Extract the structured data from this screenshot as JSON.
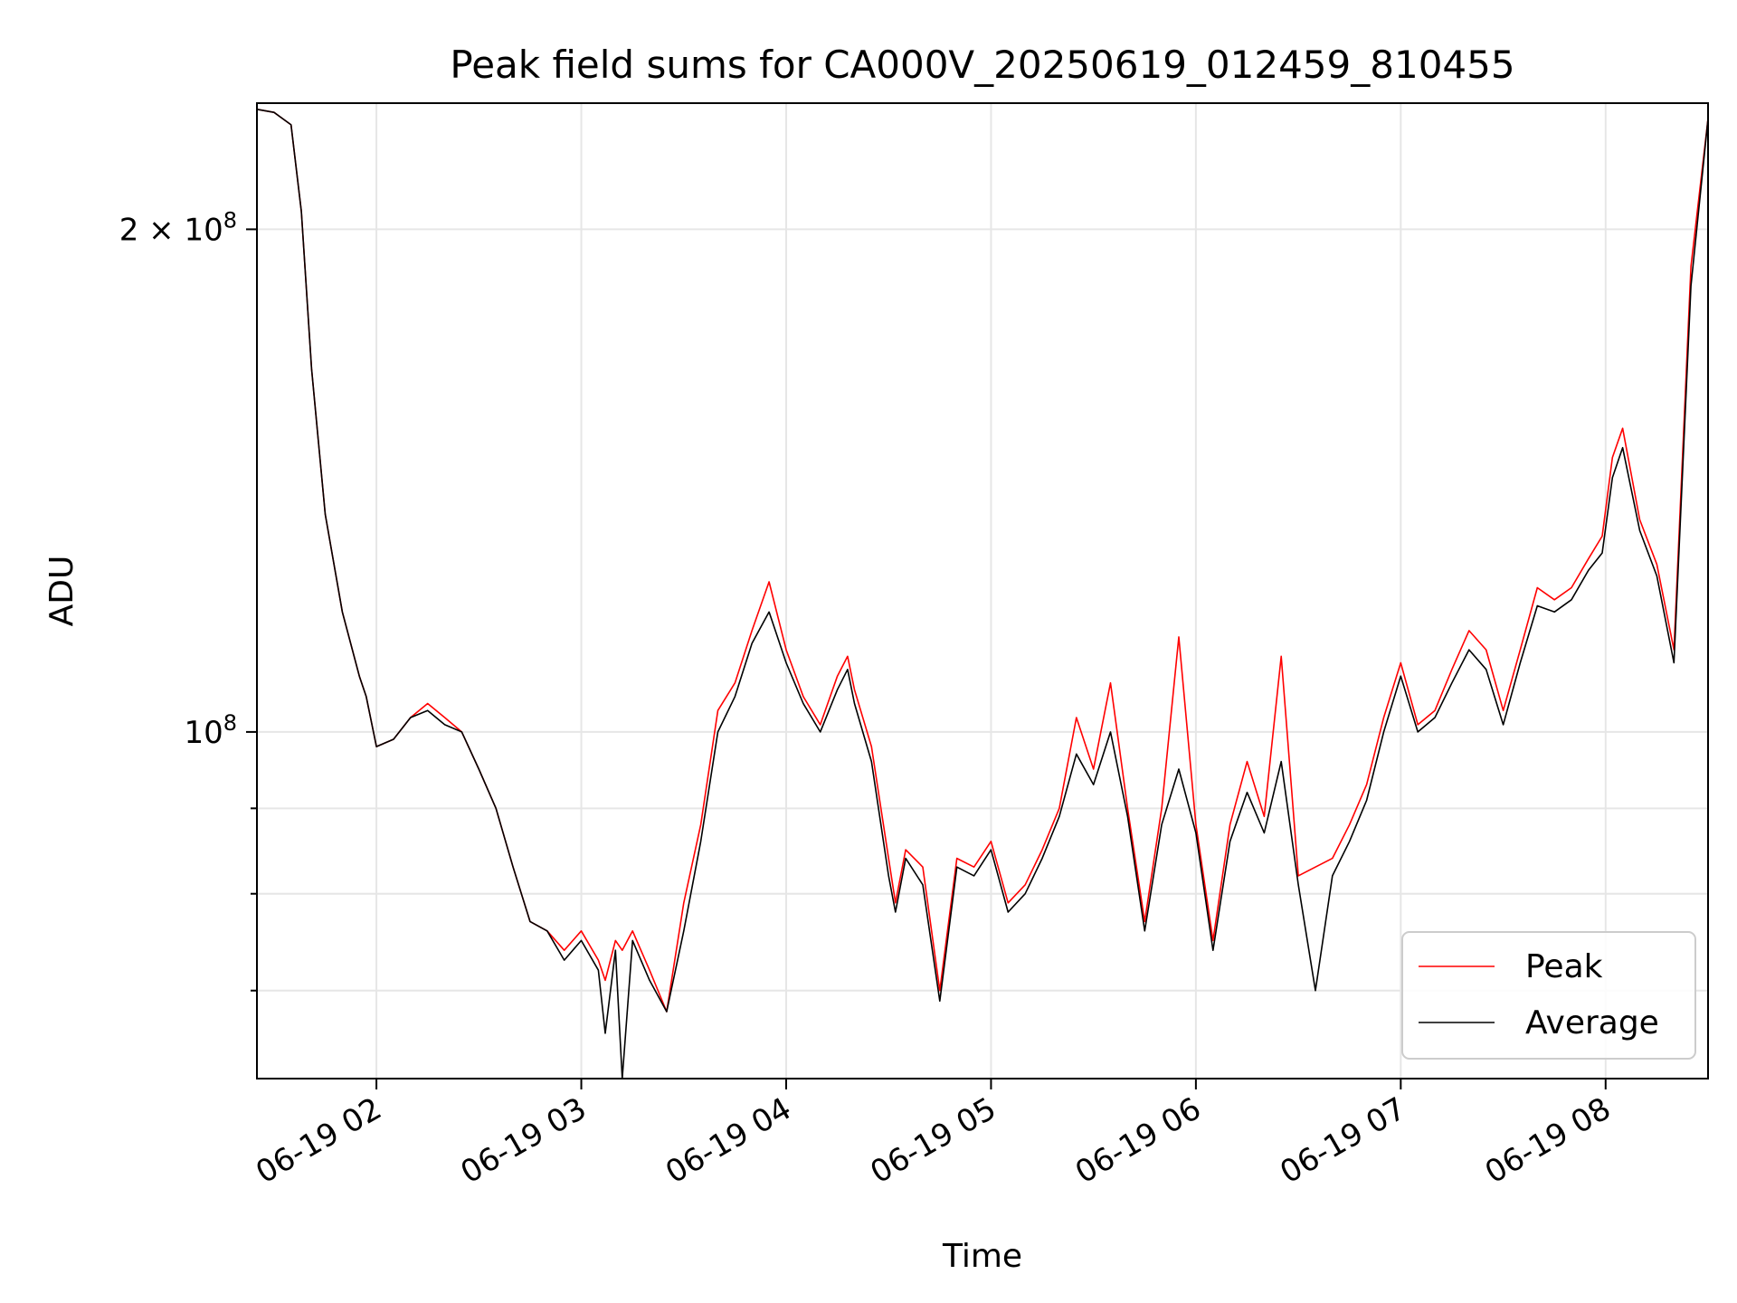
{
  "chart_data": {
    "type": "line",
    "title": "Peak field sums for CA000V_20250619_012459_810455",
    "xlabel": "Time",
    "ylabel": "ADU",
    "y_scale": "log",
    "ylim": [
      62000000,
      238000000
    ],
    "xlim": [
      "2025-06-19 01:25",
      "2025-06-19 08:30"
    ],
    "grid": true,
    "legend_position": "lower right",
    "y_ticks": [
      {
        "value": 100000000,
        "label": "10^8",
        "base": "10",
        "exp": "8"
      },
      {
        "value": 200000000,
        "label": "2×10^8",
        "base": "2 × 10",
        "exp": "8"
      }
    ],
    "y_minor_ticks": [
      70000000,
      80000000,
      90000000
    ],
    "x_ticks": [
      {
        "value": "2025-06-19 02:00",
        "label": "06-19 02"
      },
      {
        "value": "2025-06-19 03:00",
        "label": "06-19 03"
      },
      {
        "value": "2025-06-19 04:00",
        "label": "06-19 04"
      },
      {
        "value": "2025-06-19 05:00",
        "label": "06-19 05"
      },
      {
        "value": "2025-06-19 06:00",
        "label": "06-19 06"
      },
      {
        "value": "2025-06-19 07:00",
        "label": "06-19 07"
      },
      {
        "value": "2025-06-19 08:00",
        "label": "06-19 08"
      }
    ],
    "x": [
      "2025-06-19 01:25",
      "2025-06-19 01:30",
      "2025-06-19 01:35",
      "2025-06-19 01:38",
      "2025-06-19 01:41",
      "2025-06-19 01:45",
      "2025-06-19 01:50",
      "2025-06-19 01:55",
      "2025-06-19 01:57",
      "2025-06-19 02:00",
      "2025-06-19 02:05",
      "2025-06-19 02:10",
      "2025-06-19 02:15",
      "2025-06-19 02:20",
      "2025-06-19 02:25",
      "2025-06-19 02:30",
      "2025-06-19 02:35",
      "2025-06-19 02:40",
      "2025-06-19 02:45",
      "2025-06-19 02:50",
      "2025-06-19 02:55",
      "2025-06-19 03:00",
      "2025-06-19 03:05",
      "2025-06-19 03:07",
      "2025-06-19 03:10",
      "2025-06-19 03:12",
      "2025-06-19 03:15",
      "2025-06-19 03:20",
      "2025-06-19 03:25",
      "2025-06-19 03:30",
      "2025-06-19 03:35",
      "2025-06-19 03:40",
      "2025-06-19 03:45",
      "2025-06-19 03:50",
      "2025-06-19 03:55",
      "2025-06-19 04:00",
      "2025-06-19 04:05",
      "2025-06-19 04:10",
      "2025-06-19 04:15",
      "2025-06-19 04:18",
      "2025-06-19 04:20",
      "2025-06-19 04:25",
      "2025-06-19 04:30",
      "2025-06-19 04:32",
      "2025-06-19 04:35",
      "2025-06-19 04:40",
      "2025-06-19 04:45",
      "2025-06-19 04:50",
      "2025-06-19 04:55",
      "2025-06-19 05:00",
      "2025-06-19 05:05",
      "2025-06-19 05:10",
      "2025-06-19 05:15",
      "2025-06-19 05:20",
      "2025-06-19 05:25",
      "2025-06-19 05:30",
      "2025-06-19 05:35",
      "2025-06-19 05:40",
      "2025-06-19 05:45",
      "2025-06-19 05:50",
      "2025-06-19 05:55",
      "2025-06-19 06:00",
      "2025-06-19 06:05",
      "2025-06-19 06:10",
      "2025-06-19 06:15",
      "2025-06-19 06:20",
      "2025-06-19 06:25",
      "2025-06-19 06:30",
      "2025-06-19 06:35",
      "2025-06-19 06:40",
      "2025-06-19 06:45",
      "2025-06-19 06:50",
      "2025-06-19 06:55",
      "2025-06-19 07:00",
      "2025-06-19 07:05",
      "2025-06-19 07:10",
      "2025-06-19 07:15",
      "2025-06-19 07:20",
      "2025-06-19 07:25",
      "2025-06-19 07:30",
      "2025-06-19 07:35",
      "2025-06-19 07:40",
      "2025-06-19 07:45",
      "2025-06-19 07:50",
      "2025-06-19 07:55",
      "2025-06-19 07:59",
      "2025-06-19 08:02",
      "2025-06-19 08:05",
      "2025-06-19 08:10",
      "2025-06-19 08:15",
      "2025-06-19 08:20",
      "2025-06-19 08:25",
      "2025-06-19 08:30"
    ],
    "series": [
      {
        "name": "Peak",
        "color": "#ff0000",
        "values": [
          236000000,
          235000000,
          231000000,
          205000000,
          165000000,
          135000000,
          118000000,
          108000000,
          105000000,
          98000000,
          99000000,
          102000000,
          104000000,
          102000000,
          100000000,
          95000000,
          90000000,
          83000000,
          77000000,
          76000000,
          74000000,
          76000000,
          73000000,
          71000000,
          75000000,
          74000000,
          76000000,
          72000000,
          68000000,
          79000000,
          88000000,
          103000000,
          107000000,
          115000000,
          123000000,
          112000000,
          105000000,
          101000000,
          108000000,
          111000000,
          106000000,
          98000000,
          84000000,
          79000000,
          85000000,
          83000000,
          70000000,
          84000000,
          83000000,
          86000000,
          79000000,
          81000000,
          85000000,
          90000000,
          102000000,
          95000000,
          107000000,
          90000000,
          77000000,
          90000000,
          114000000,
          88000000,
          75000000,
          88000000,
          96000000,
          89000000,
          111000000,
          82000000,
          83000000,
          84000000,
          88000000,
          93000000,
          102000000,
          110000000,
          101000000,
          103000000,
          109000000,
          115000000,
          112000000,
          103000000,
          112000000,
          122000000,
          120000000,
          122000000,
          127000000,
          131000000,
          146000000,
          152000000,
          134000000,
          126000000,
          112000000,
          190000000,
          233000000
        ]
      },
      {
        "name": "Average",
        "color": "#000000",
        "values": [
          236000000,
          235000000,
          231000000,
          205000000,
          165000000,
          135000000,
          118000000,
          108000000,
          105000000,
          98000000,
          99000000,
          102000000,
          103000000,
          101000000,
          100000000,
          95000000,
          90000000,
          83000000,
          77000000,
          76000000,
          73000000,
          75000000,
          72000000,
          66000000,
          74000000,
          62000000,
          75000000,
          71000000,
          68000000,
          76000000,
          86000000,
          100000000,
          105000000,
          113000000,
          118000000,
          110000000,
          104000000,
          100000000,
          106000000,
          109000000,
          104000000,
          96000000,
          82000000,
          78000000,
          84000000,
          81000000,
          69000000,
          83000000,
          82000000,
          85000000,
          78000000,
          80000000,
          84000000,
          89000000,
          97000000,
          93000000,
          100000000,
          89000000,
          76000000,
          88000000,
          95000000,
          87000000,
          74000000,
          86000000,
          92000000,
          87000000,
          96000000,
          81000000,
          70000000,
          82000000,
          86000000,
          91000000,
          100000000,
          108000000,
          100000000,
          102000000,
          107000000,
          112000000,
          109000000,
          101000000,
          110000000,
          119000000,
          118000000,
          120000000,
          125000000,
          128000000,
          142000000,
          148000000,
          132000000,
          124000000,
          110000000,
          185000000,
          233000000
        ]
      }
    ]
  }
}
